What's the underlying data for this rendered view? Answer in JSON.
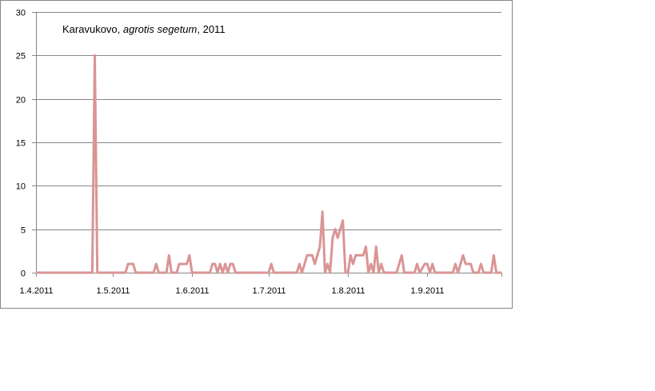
{
  "chart_data": {
    "type": "line",
    "title_parts": [
      {
        "text": "Karavukovo, ",
        "italic": false
      },
      {
        "text": "agrotis segetum",
        "italic": true
      },
      {
        "text": ", 2011",
        "italic": false
      }
    ],
    "xlabel": "",
    "ylabel": "",
    "ylim": [
      0,
      30
    ],
    "yticks": [
      0,
      5,
      10,
      15,
      20,
      25,
      30
    ],
    "xlim": [
      "2011-04-01",
      "2011-09-30"
    ],
    "xticks": [
      {
        "date": "2011-04-01",
        "label": "1.4.2011"
      },
      {
        "date": "2011-05-01",
        "label": "1.5.2011"
      },
      {
        "date": "2011-06-01",
        "label": "1.6.2011"
      },
      {
        "date": "2011-07-01",
        "label": "1.7.2011"
      },
      {
        "date": "2011-08-01",
        "label": "1.8.2011"
      },
      {
        "date": "2011-09-01",
        "label": "1.9.2011"
      }
    ],
    "grid": true,
    "legend": "none",
    "line_color": "#d99594",
    "series": [
      {
        "points": [
          [
            "2011-04-01",
            0
          ],
          [
            "2011-04-23",
            0
          ],
          [
            "2011-04-24",
            25
          ],
          [
            "2011-04-25",
            0
          ],
          [
            "2011-05-06",
            0
          ],
          [
            "2011-05-07",
            1
          ],
          [
            "2011-05-09",
            1
          ],
          [
            "2011-05-10",
            0
          ],
          [
            "2011-05-17",
            0
          ],
          [
            "2011-05-18",
            1
          ],
          [
            "2011-05-19",
            0
          ],
          [
            "2011-05-22",
            0
          ],
          [
            "2011-05-23",
            2
          ],
          [
            "2011-05-24",
            0
          ],
          [
            "2011-05-26",
            0
          ],
          [
            "2011-05-27",
            1
          ],
          [
            "2011-05-30",
            1
          ],
          [
            "2011-05-31",
            2
          ],
          [
            "2011-06-01",
            0
          ],
          [
            "2011-06-08",
            0
          ],
          [
            "2011-06-09",
            1
          ],
          [
            "2011-06-10",
            1
          ],
          [
            "2011-06-11",
            0
          ],
          [
            "2011-06-12",
            1
          ],
          [
            "2011-06-13",
            0
          ],
          [
            "2011-06-14",
            1
          ],
          [
            "2011-06-15",
            0
          ],
          [
            "2011-06-16",
            1
          ],
          [
            "2011-06-17",
            1
          ],
          [
            "2011-06-18",
            0
          ],
          [
            "2011-07-01",
            0
          ],
          [
            "2011-07-02",
            1
          ],
          [
            "2011-07-03",
            0
          ],
          [
            "2011-07-12",
            0
          ],
          [
            "2011-07-13",
            1
          ],
          [
            "2011-07-14",
            0
          ],
          [
            "2011-07-16",
            2
          ],
          [
            "2011-07-18",
            2
          ],
          [
            "2011-07-19",
            1
          ],
          [
            "2011-07-21",
            3
          ],
          [
            "2011-07-22",
            7
          ],
          [
            "2011-07-23",
            0
          ],
          [
            "2011-07-24",
            1
          ],
          [
            "2011-07-25",
            0
          ],
          [
            "2011-07-26",
            4
          ],
          [
            "2011-07-27",
            5
          ],
          [
            "2011-07-28",
            4
          ],
          [
            "2011-07-30",
            6
          ],
          [
            "2011-07-31",
            0
          ],
          [
            "2011-08-01",
            0
          ],
          [
            "2011-08-02",
            2
          ],
          [
            "2011-08-03",
            1
          ],
          [
            "2011-08-04",
            2
          ],
          [
            "2011-08-07",
            2
          ],
          [
            "2011-08-08",
            3
          ],
          [
            "2011-08-09",
            0
          ],
          [
            "2011-08-10",
            1
          ],
          [
            "2011-08-11",
            0
          ],
          [
            "2011-08-12",
            3
          ],
          [
            "2011-08-13",
            0
          ],
          [
            "2011-08-14",
            1
          ],
          [
            "2011-08-15",
            0
          ],
          [
            "2011-08-20",
            0
          ],
          [
            "2011-08-22",
            2
          ],
          [
            "2011-08-23",
            0
          ],
          [
            "2011-08-27",
            0
          ],
          [
            "2011-08-28",
            1
          ],
          [
            "2011-08-29",
            0
          ],
          [
            "2011-08-31",
            1
          ],
          [
            "2011-09-01",
            1
          ],
          [
            "2011-09-02",
            0
          ],
          [
            "2011-09-03",
            1
          ],
          [
            "2011-09-04",
            0
          ],
          [
            "2011-09-11",
            0
          ],
          [
            "2011-09-12",
            1
          ],
          [
            "2011-09-13",
            0
          ],
          [
            "2011-09-14",
            1
          ],
          [
            "2011-09-15",
            2
          ],
          [
            "2011-09-16",
            1
          ],
          [
            "2011-09-18",
            1
          ],
          [
            "2011-09-19",
            0
          ],
          [
            "2011-09-21",
            0
          ],
          [
            "2011-09-22",
            1
          ],
          [
            "2011-09-23",
            0
          ],
          [
            "2011-09-26",
            0
          ],
          [
            "2011-09-27",
            2
          ],
          [
            "2011-09-28",
            0
          ],
          [
            "2011-09-30",
            0
          ]
        ]
      }
    ]
  }
}
